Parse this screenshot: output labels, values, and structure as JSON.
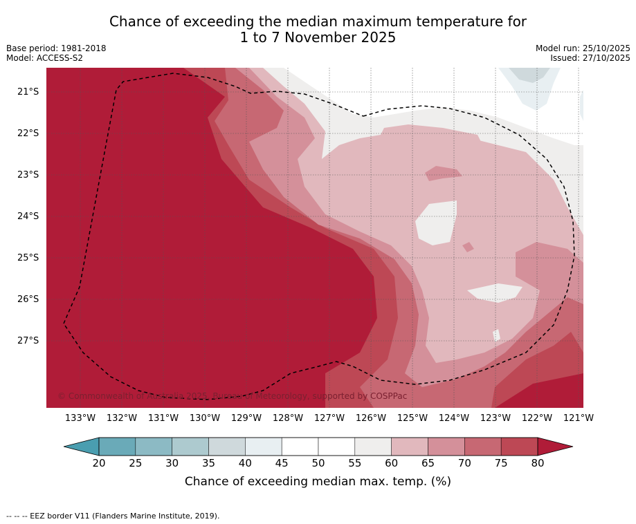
{
  "title": {
    "line1": "Chance of exceeding the median maximum temperature for",
    "line2": "1 to 7 November 2025"
  },
  "metadata": {
    "base_period": "Base period: 1981-2018",
    "model": "Model: ACCESS-S2",
    "model_run": "Model run: 25/10/2025",
    "issued": "Issued: 27/10/2025"
  },
  "map": {
    "latitude_labels": [
      "21°S",
      "22°S",
      "23°S",
      "24°S",
      "25°S",
      "26°S",
      "27°S"
    ],
    "longitude_labels": [
      "133°W",
      "132°W",
      "131°W",
      "130°W",
      "129°W",
      "128°W",
      "127°W",
      "126°W",
      "125°W",
      "124°W",
      "123°W",
      "122°W",
      "121°W"
    ],
    "copyright": "© Commonwealth of Australia 2025, Bureau of Meteorology, supported by COSPPac",
    "eez_border_style": "dashed"
  },
  "colorbar": {
    "ticks": [
      "20",
      "25",
      "30",
      "35",
      "40",
      "45",
      "50",
      "55",
      "60",
      "65",
      "70",
      "75",
      "80"
    ],
    "colors": [
      "#6aaab8",
      "#8cbac4",
      "#adcacf",
      "#cfd9dc",
      "#e8eff2",
      "#ffffff",
      "#ffffff",
      "#efeeed",
      "#e1b8bd",
      "#d4909a",
      "#c76873",
      "#bd4855"
    ],
    "under_color": "#4a9eb0",
    "over_color": "#b01c38",
    "label": "Chance of exceeding median max. temp. (%)"
  },
  "footnote": "-- -- -- EEZ border V11 (Flanders Marine Institute, 2019)."
}
